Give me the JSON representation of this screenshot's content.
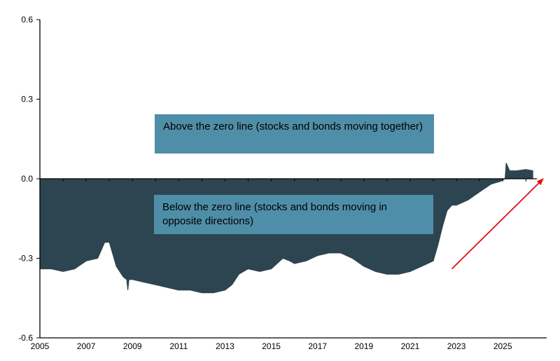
{
  "chart_data": {
    "type": "area",
    "title": "",
    "xlabel": "",
    "ylabel": "",
    "xlim": [
      2005,
      2026.9
    ],
    "ylim": [
      -0.6,
      0.6
    ],
    "y_ticks": [
      "0.6",
      "0.3",
      "0.0",
      "-0.3",
      "-0.6"
    ],
    "x_ticks": [
      "2005",
      "2007",
      "2009",
      "2011",
      "2013",
      "2015",
      "2017",
      "2019",
      "2021",
      "2023",
      "2025"
    ],
    "grid": false,
    "legend": "none",
    "colors": {
      "area": "#2d4550",
      "annotation_box": "#4f8ea8",
      "arrow": "#e01010"
    },
    "series": [
      {
        "x": [
          2005.0,
          2005.5,
          2006.0,
          2006.5,
          2007.0,
          2007.5,
          2007.8,
          2008.0,
          2008.3,
          2008.6,
          2008.75,
          2008.8,
          2008.85,
          2009.0,
          2009.5,
          2010.0,
          2010.5,
          2011.0,
          2011.5,
          2012.0,
          2012.5,
          2013.0,
          2013.3,
          2013.6,
          2014.0,
          2014.5,
          2015.0,
          2015.5,
          2015.8,
          2016.0,
          2016.5,
          2017.0,
          2017.5,
          2018.0,
          2018.5,
          2019.0,
          2019.5,
          2020.0,
          2020.5,
          2021.0,
          2021.5,
          2022.0,
          2022.2,
          2022.4,
          2022.6,
          2022.8,
          2023.0,
          2023.5,
          2024.0,
          2024.5,
          2024.9,
          2025.1,
          2025.15,
          2025.3,
          2025.6,
          2026.0,
          2026.3
        ],
        "values": [
          -0.34,
          -0.34,
          -0.35,
          -0.34,
          -0.31,
          -0.3,
          -0.24,
          -0.24,
          -0.33,
          -0.37,
          -0.38,
          -0.42,
          -0.38,
          -0.38,
          -0.39,
          -0.4,
          -0.41,
          -0.42,
          -0.42,
          -0.43,
          -0.43,
          -0.42,
          -0.4,
          -0.36,
          -0.34,
          -0.35,
          -0.34,
          -0.3,
          -0.31,
          -0.32,
          -0.31,
          -0.29,
          -0.28,
          -0.28,
          -0.3,
          -0.33,
          -0.35,
          -0.36,
          -0.36,
          -0.35,
          -0.33,
          -0.31,
          -0.25,
          -0.18,
          -0.12,
          -0.1,
          -0.1,
          -0.08,
          -0.05,
          -0.02,
          -0.01,
          0.0,
          0.06,
          0.03,
          0.03,
          0.035,
          0.03
        ]
      }
    ],
    "annotations": {
      "above": "Above the zero line (stocks and bonds moving together)",
      "below": "Below the zero line (stocks and bonds moving in opposite directions)"
    },
    "arrow": {
      "from": [
        2022.8,
        -0.34
      ],
      "to": [
        2026.75,
        -0.0
      ]
    }
  }
}
